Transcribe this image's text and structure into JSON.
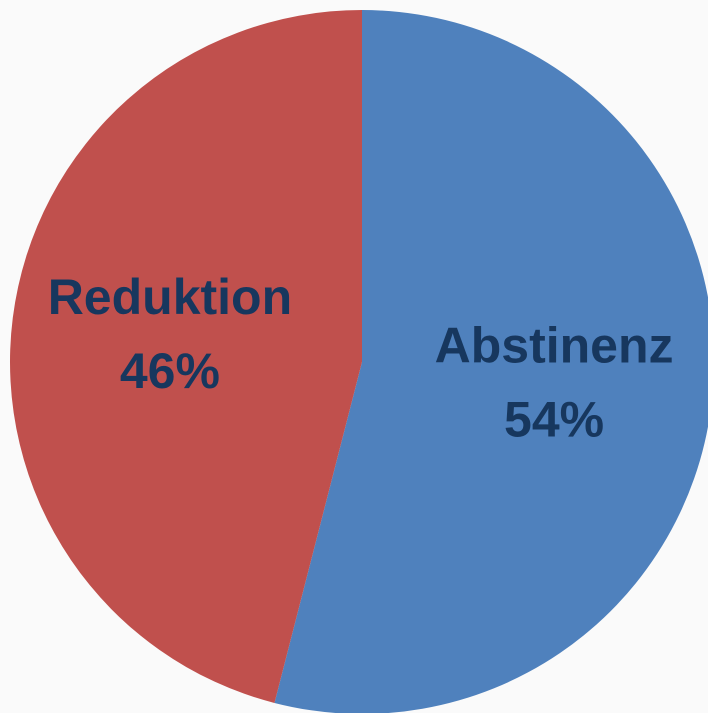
{
  "chart_data": {
    "type": "pie",
    "categories": [
      "Abstinenz",
      "Reduktion"
    ],
    "values": [
      54,
      46
    ],
    "value_labels": [
      "54%",
      "46%"
    ],
    "colors": [
      "#4f81bd",
      "#c0504d"
    ]
  }
}
